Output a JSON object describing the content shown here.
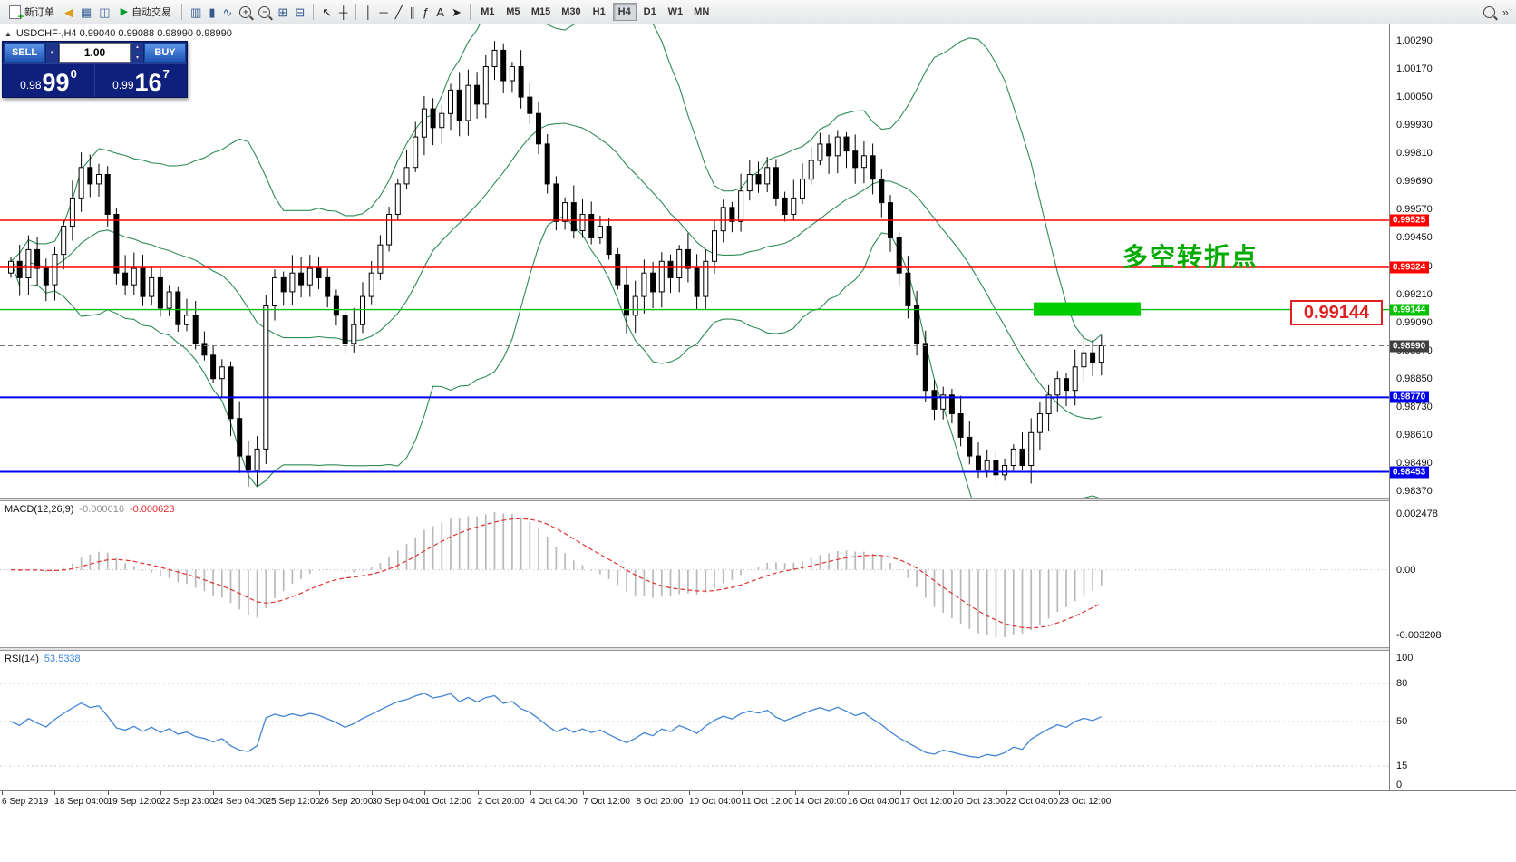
{
  "icons": {
    "chevron_up": "▴",
    "chevron_down": "▾",
    "collapse_triangle": "▲",
    "play": "▶"
  },
  "toolbar": {
    "new_order_label": "新订单",
    "auto_trading_label": "自动交易",
    "left_icons": [
      {
        "name": "announcement-icon",
        "glyph": "◀",
        "color": "#dd9d16"
      },
      {
        "name": "market-watch-icon",
        "glyph": "▦",
        "color": "#44699d"
      },
      {
        "name": "data-window-icon",
        "glyph": "◫",
        "color": "#44699d"
      }
    ],
    "chart_icons": [
      {
        "name": "bar-chart-icon",
        "glyph": "▥",
        "color": "#355b8c"
      },
      {
        "name": "candlestick-chart-icon",
        "glyph": "▮",
        "color": "#355b8c"
      },
      {
        "name": "line-chart-icon",
        "glyph": "∿",
        "color": "#355b8c"
      },
      {
        "name": "zoom-in-icon",
        "kind": "mag",
        "glyph": "+",
        "color": "#444"
      },
      {
        "name": "zoom-out-icon",
        "kind": "mag",
        "glyph": "−",
        "color": "#444"
      },
      {
        "name": "tile-windows-icon",
        "glyph": "⊞",
        "color": "#355b8c"
      },
      {
        "name": "cascade-windows-icon",
        "glyph": "⊟",
        "color": "#355b8c"
      }
    ],
    "pointer_icons": [
      {
        "name": "cursor-icon",
        "glyph": "↖",
        "color": "#222"
      },
      {
        "name": "crosshair-icon",
        "glyph": "┼",
        "color": "#222"
      }
    ],
    "draw_icons": [
      {
        "name": "vertical-line-icon",
        "glyph": "│",
        "color": "#222"
      },
      {
        "name": "horizontal-line-icon",
        "glyph": "─",
        "color": "#222"
      },
      {
        "name": "trendline-icon",
        "glyph": "╱",
        "color": "#222"
      },
      {
        "name": "equidistant-channel-icon",
        "glyph": "∥",
        "color": "#222"
      },
      {
        "name": "fibonacci-icon",
        "glyph": "ƒ",
        "color": "#222"
      },
      {
        "name": "text-icon",
        "glyph": "A",
        "color": "#222"
      },
      {
        "name": "arrows-icon",
        "glyph": "➤",
        "color": "#222"
      }
    ],
    "timeframes": [
      "M1",
      "M5",
      "M15",
      "M30",
      "H1",
      "H4",
      "D1",
      "W1",
      "MN"
    ],
    "active_timeframe": "H4",
    "right_icons": [
      {
        "name": "search-icon",
        "kind": "mag",
        "glyph": "",
        "color": "#444"
      },
      {
        "name": "toolbar-overflow-icon",
        "glyph": "»",
        "color": "#444"
      }
    ]
  },
  "trade_panel": {
    "sell_label": "SELL",
    "buy_label": "BUY",
    "volume": "1.00",
    "sell_price": {
      "prefix": "0.98",
      "big": "99",
      "sup": "0"
    },
    "buy_price": {
      "prefix": "0.99",
      "big": "16",
      "sup": "7"
    }
  },
  "chart": {
    "symbol_info": "USDCHF-,H4  0.99040 0.99088 0.98990 0.98990",
    "annotation": "多空转折点",
    "price_callout": "0.99144",
    "current_price": {
      "value": 0.9899,
      "label": "0.98990"
    },
    "highlight_zone": {
      "price": 0.99144
    },
    "levels": [
      {
        "price": 0.99525,
        "label": "0.99525",
        "color": "#ff0000",
        "kind": "resistance"
      },
      {
        "price": 0.99324,
        "label": "0.99324",
        "color": "#ff0000",
        "kind": "resistance"
      },
      {
        "price": 0.99144,
        "label": "0.99144",
        "color": "#00c000",
        "kind": "pivot"
      },
      {
        "price": 0.9877,
        "label": "0.98770",
        "color": "#0000ee",
        "kind": "support"
      },
      {
        "price": 0.98453,
        "label": "0.98453",
        "color": "#0000ee",
        "kind": "support"
      }
    ],
    "axis_ticks": [
      "1.00290",
      "1.00170",
      "1.00050",
      "0.99930",
      "0.99810",
      "0.99690",
      "0.99570",
      "0.99450",
      "0.99330",
      "0.99210",
      "0.99090",
      "0.98970",
      "0.98850",
      "0.98730",
      "0.98610",
      "0.98490",
      "0.98370"
    ]
  },
  "chart_data": {
    "type": "candlestick",
    "symbol": "USDCHF",
    "period": "H4",
    "price_range_top": 1.0029,
    "price_step": 0.0012,
    "bollinger": {
      "period": 20,
      "deviation": 2
    },
    "closes": [
      0.9935,
      0.9928,
      0.994,
      0.9932,
      0.9925,
      0.9938,
      0.995,
      0.9962,
      0.9975,
      0.9968,
      0.9972,
      0.9955,
      0.993,
      0.9925,
      0.9932,
      0.992,
      0.9928,
      0.9915,
      0.9922,
      0.9908,
      0.9912,
      0.99,
      0.9895,
      0.9885,
      0.989,
      0.9868,
      0.9852,
      0.9846,
      0.9855,
      0.9916,
      0.9928,
      0.9922,
      0.993,
      0.9925,
      0.9932,
      0.9928,
      0.992,
      0.9912,
      0.99,
      0.9908,
      0.992,
      0.993,
      0.9942,
      0.9955,
      0.9968,
      0.9975,
      0.9988,
      1.0,
      0.9992,
      0.9998,
      1.0008,
      0.9995,
      1.001,
      1.0002,
      1.0018,
      1.0025,
      1.0012,
      1.0018,
      1.0005,
      0.9998,
      0.9985,
      0.9968,
      0.9952,
      0.996,
      0.9948,
      0.9955,
      0.9945,
      0.995,
      0.9938,
      0.9925,
      0.9912,
      0.992,
      0.993,
      0.9922,
      0.9935,
      0.9928,
      0.994,
      0.9932,
      0.992,
      0.9935,
      0.9948,
      0.9958,
      0.9952,
      0.9965,
      0.9972,
      0.9968,
      0.9975,
      0.9962,
      0.9955,
      0.9962,
      0.997,
      0.9978,
      0.9985,
      0.998,
      0.9988,
      0.9982,
      0.9975,
      0.998,
      0.997,
      0.996,
      0.9945,
      0.993,
      0.9916,
      0.99,
      0.988,
      0.9872,
      0.9878,
      0.987,
      0.986,
      0.9852,
      0.9846,
      0.985,
      0.9844,
      0.9848,
      0.9855,
      0.9848,
      0.9862,
      0.987,
      0.9878,
      0.9885,
      0.988,
      0.989,
      0.9896,
      0.9892,
      0.9899
    ]
  },
  "macd": {
    "label": "MACD(12,26,9)",
    "value_main": "-0.000016",
    "value_signal": "-0.000623",
    "params": {
      "fast": 12,
      "slow": 26,
      "signal": 9
    },
    "scale": [
      "0.002478",
      "0.00",
      "-0.003208"
    ]
  },
  "rsi": {
    "label": "RSI(14)",
    "value": "53.5338",
    "period": 14,
    "levels": [
      100,
      80,
      50,
      15,
      0
    ]
  },
  "time_axis": {
    "labels": [
      "6 Sep 2019",
      "18 Sep 04:00",
      "19 Sep 12:00",
      "22 Sep 23:00",
      "24 Sep 04:00",
      "25 Sep 12:00",
      "26 Sep 20:00",
      "30 Sep 04:00",
      "1 Oct 12:00",
      "2 Oct 20:00",
      "4 Oct 04:00",
      "7 Oct 12:00",
      "8 Oct 20:00",
      "10 Oct 04:00",
      "11 Oct 12:00",
      "14 Oct 20:00",
      "16 Oct 04:00",
      "17 Oct 12:00",
      "20 Oct 23:00",
      "22 Oct 04:00",
      "23 Oct 12:00"
    ]
  }
}
